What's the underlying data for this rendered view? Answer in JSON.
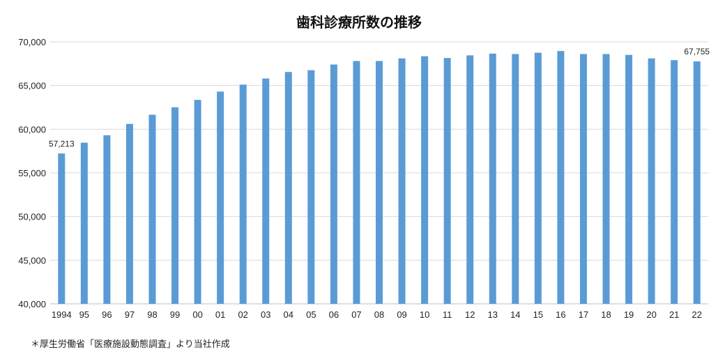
{
  "chart_data": {
    "type": "bar",
    "title": "歯科診療所数の推移",
    "xlabel": "",
    "ylabel": "",
    "ylim": [
      40000,
      70000
    ],
    "yticks": [
      "40,000",
      "45,000",
      "50,000",
      "55,000",
      "60,000",
      "65,000",
      "70,000"
    ],
    "categories": [
      "1994",
      "95",
      "96",
      "97",
      "98",
      "99",
      "00",
      "01",
      "02",
      "03",
      "04",
      "05",
      "06",
      "07",
      "08",
      "09",
      "10",
      "11",
      "12",
      "13",
      "14",
      "15",
      "16",
      "17",
      "18",
      "19",
      "20",
      "21",
      "22"
    ],
    "values": [
      57213,
      58450,
      59300,
      60600,
      61650,
      62500,
      63350,
      64300,
      65100,
      65800,
      66550,
      66750,
      67400,
      67800,
      67800,
      68100,
      68350,
      68150,
      68450,
      68650,
      68600,
      68750,
      68950,
      68600,
      68600,
      68500,
      68100,
      67900,
      67755
    ],
    "data_labels": [
      {
        "index": 0,
        "text": "57,213"
      },
      {
        "index": 28,
        "text": "67,755"
      }
    ],
    "grid": true,
    "bar_color": "#5b9bd5",
    "grid_color": "#d9d9d9",
    "legend": "none"
  },
  "footnote": "＊厚生労働省「医療施設動態調査」より当社作成"
}
